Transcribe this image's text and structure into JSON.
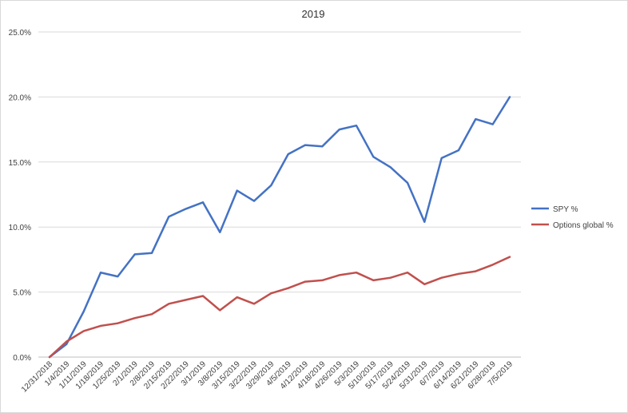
{
  "chart_data": {
    "type": "line",
    "title": "2019",
    "xlabel": "",
    "ylabel": "",
    "ylim": [
      0,
      0.25
    ],
    "yticks": [
      "0.0%",
      "5.0%",
      "10.0%",
      "15.0%",
      "20.0%",
      "25.0%"
    ],
    "ytick_values": [
      0,
      0.05,
      0.1,
      0.15,
      0.2,
      0.25
    ],
    "grid": true,
    "legend_position": "right",
    "categories": [
      "12/31/2018",
      "1/4/2019",
      "1/11/2019",
      "1/18/2019",
      "1/25/2019",
      "2/1/2019",
      "2/8/2019",
      "2/15/2019",
      "2/22/2019",
      "3/1/2019",
      "3/8/2019",
      "3/15/2019",
      "3/22/2019",
      "3/29/2019",
      "4/5/2019",
      "4/12/2019",
      "4/18/2019",
      "4/26/2019",
      "5/3/2019",
      "5/10/2019",
      "5/17/2019",
      "5/24/2019",
      "5/31/2019",
      "6/7/2019",
      "6/14/2019",
      "6/21/2019",
      "6/28/2019",
      "7/5/2019"
    ],
    "series": [
      {
        "name": "SPY %",
        "color": "#4472c4",
        "values": [
          0.0,
          0.01,
          0.035,
          0.065,
          0.062,
          0.079,
          0.08,
          0.108,
          0.114,
          0.119,
          0.096,
          0.128,
          0.12,
          0.132,
          0.156,
          0.163,
          0.162,
          0.175,
          0.178,
          0.154,
          0.146,
          0.134,
          0.104,
          0.153,
          0.159,
          0.183,
          0.179,
          0.2
        ]
      },
      {
        "name": "Options global %",
        "color": "#c0504d",
        "values": [
          0.0,
          0.012,
          0.02,
          0.024,
          0.026,
          0.03,
          0.033,
          0.041,
          0.044,
          0.047,
          0.036,
          0.046,
          0.041,
          0.049,
          0.053,
          0.058,
          0.059,
          0.063,
          0.065,
          0.059,
          0.061,
          0.065,
          0.056,
          0.061,
          0.064,
          0.066,
          0.071,
          0.077
        ]
      }
    ]
  }
}
